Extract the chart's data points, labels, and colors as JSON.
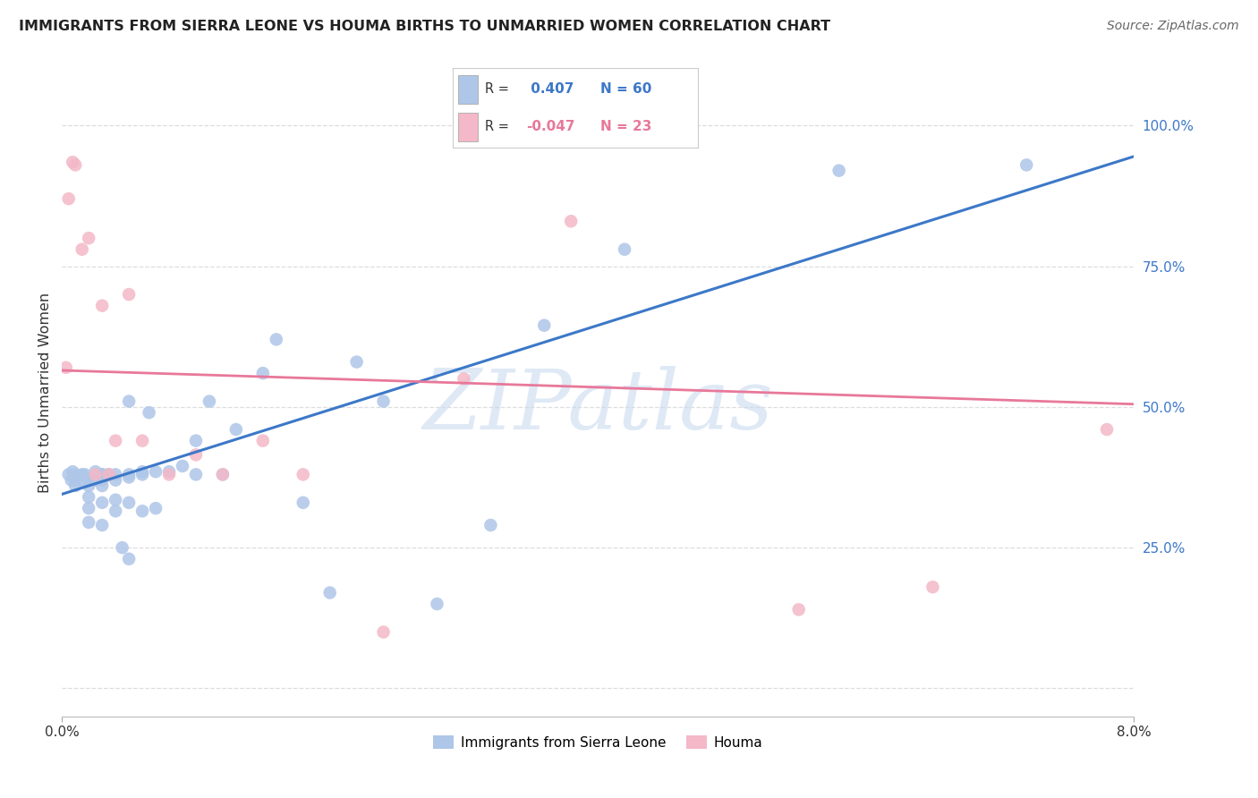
{
  "title": "IMMIGRANTS FROM SIERRA LEONE VS HOUMA BIRTHS TO UNMARRIED WOMEN CORRELATION CHART",
  "source": "Source: ZipAtlas.com",
  "ylabel": "Births to Unmarried Women",
  "xlim": [
    0.0,
    0.08
  ],
  "ylim": [
    -0.05,
    1.1
  ],
  "yticks": [
    0.0,
    0.25,
    0.5,
    0.75,
    1.0
  ],
  "ytick_labels": [
    "",
    "25.0%",
    "50.0%",
    "75.0%",
    "100.0%"
  ],
  "blue_r": 0.407,
  "blue_n": 60,
  "pink_r": -0.047,
  "pink_n": 23,
  "blue_fill_color": "#aec6e8",
  "pink_fill_color": "#f4b8c8",
  "blue_line_color": "#3c78c8",
  "pink_line_color": "#e8789a",
  "right_tick_color": "#3c78c8",
  "legend_blue_label": "Immigrants from Sierra Leone",
  "legend_pink_label": "Houma",
  "blue_line_x0": 0.0,
  "blue_line_y0": 0.345,
  "blue_line_x1": 0.08,
  "blue_line_y1": 0.945,
  "pink_line_x0": 0.0,
  "pink_line_y0": 0.565,
  "pink_line_x1": 0.08,
  "pink_line_y1": 0.505,
  "blue_scatter_x": [
    0.0005,
    0.0007,
    0.0008,
    0.001,
    0.001,
    0.001,
    0.001,
    0.0015,
    0.0015,
    0.0017,
    0.002,
    0.002,
    0.002,
    0.002,
    0.002,
    0.0025,
    0.0025,
    0.003,
    0.003,
    0.003,
    0.003,
    0.003,
    0.003,
    0.0035,
    0.0035,
    0.004,
    0.004,
    0.004,
    0.004,
    0.0045,
    0.005,
    0.005,
    0.005,
    0.005,
    0.005,
    0.006,
    0.006,
    0.006,
    0.0065,
    0.007,
    0.007,
    0.008,
    0.009,
    0.01,
    0.01,
    0.011,
    0.012,
    0.013,
    0.015,
    0.016,
    0.018,
    0.02,
    0.022,
    0.024,
    0.028,
    0.032,
    0.036,
    0.042,
    0.058,
    0.072
  ],
  "blue_scatter_y": [
    0.38,
    0.37,
    0.385,
    0.38,
    0.375,
    0.37,
    0.36,
    0.37,
    0.38,
    0.38,
    0.295,
    0.32,
    0.34,
    0.36,
    0.37,
    0.37,
    0.385,
    0.29,
    0.33,
    0.36,
    0.37,
    0.38,
    0.38,
    0.38,
    0.38,
    0.315,
    0.335,
    0.37,
    0.38,
    0.25,
    0.23,
    0.33,
    0.375,
    0.38,
    0.51,
    0.315,
    0.38,
    0.385,
    0.49,
    0.32,
    0.385,
    0.385,
    0.395,
    0.38,
    0.44,
    0.51,
    0.38,
    0.46,
    0.56,
    0.62,
    0.33,
    0.17,
    0.58,
    0.51,
    0.15,
    0.29,
    0.645,
    0.78,
    0.92,
    0.93
  ],
  "pink_scatter_x": [
    0.0003,
    0.0005,
    0.0008,
    0.001,
    0.0015,
    0.002,
    0.0025,
    0.003,
    0.0035,
    0.004,
    0.005,
    0.006,
    0.008,
    0.01,
    0.012,
    0.015,
    0.018,
    0.024,
    0.03,
    0.038,
    0.055,
    0.065,
    0.078
  ],
  "pink_scatter_y": [
    0.57,
    0.87,
    0.935,
    0.93,
    0.78,
    0.8,
    0.38,
    0.68,
    0.38,
    0.44,
    0.7,
    0.44,
    0.38,
    0.415,
    0.38,
    0.44,
    0.38,
    0.1,
    0.55,
    0.83,
    0.14,
    0.18,
    0.46
  ],
  "watermark_text": "ZIPatlas",
  "background_color": "#ffffff",
  "grid_color": "#dddddd"
}
